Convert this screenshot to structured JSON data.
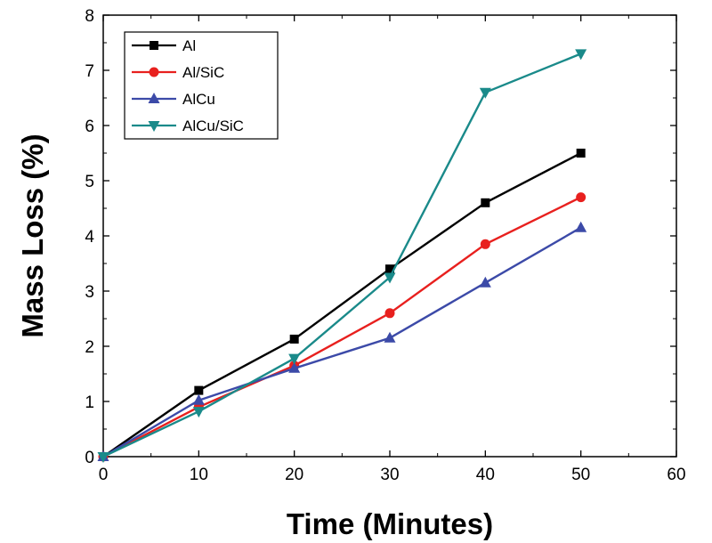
{
  "chart_data": {
    "type": "line",
    "xlabel": "Time (Minutes)",
    "ylabel": "Mass Loss (%)",
    "xlim": [
      0,
      60
    ],
    "ylim": [
      0,
      8
    ],
    "xticks": [
      "0",
      "10",
      "20",
      "30",
      "40",
      "50",
      "60"
    ],
    "yticks": [
      "0",
      "1",
      "2",
      "3",
      "4",
      "5",
      "6",
      "7",
      "8"
    ],
    "x": [
      0,
      10,
      20,
      30,
      40,
      50
    ],
    "grid": false,
    "legend_position": "top-left",
    "series": [
      {
        "name": "Al",
        "color": "#000000",
        "marker": "square",
        "values": [
          0,
          1.2,
          2.13,
          3.4,
          4.6,
          5.5
        ]
      },
      {
        "name": "Al/SiC",
        "color": "#e8201e",
        "marker": "circle",
        "values": [
          0,
          0.9,
          1.65,
          2.6,
          3.85,
          4.7
        ]
      },
      {
        "name": "AlCu",
        "color": "#3c4aa8",
        "marker": "triangle-up",
        "values": [
          0,
          1.02,
          1.6,
          2.15,
          3.15,
          4.15
        ]
      },
      {
        "name": "AlCu/SiC",
        "color": "#1a8a8a",
        "marker": "triangle-down",
        "values": [
          0,
          0.82,
          1.78,
          3.25,
          6.6,
          7.3
        ]
      }
    ]
  }
}
